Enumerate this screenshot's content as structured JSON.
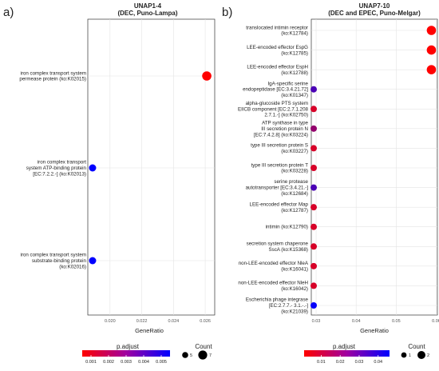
{
  "figure": {
    "legend_colors": [
      "#ff0000",
      "#0000ff"
    ]
  },
  "chart_data": [
    {
      "panel": "a)",
      "type": "scatter",
      "title": "UNAP1-4",
      "subtitle": "(DEC, Puno-Lampa)",
      "xlabel": "GeneRatio",
      "xlim": [
        0.0186,
        0.0266
      ],
      "xticks": [
        0.02,
        0.022,
        0.024,
        0.026
      ],
      "xtick_labels": [
        "0.020",
        "0.022",
        "0.024",
        "0.026"
      ],
      "categories": [
        [
          "iron complex transport system",
          "permease protein (ko:K02015)"
        ],
        [
          "iron complex transport",
          "system ATP-binding protein",
          "[EC:7.2.2.-] (ko:K02013)"
        ],
        [
          "iron complex transport system",
          "substrate-binding protein",
          "(ko:K02016)"
        ]
      ],
      "points": [
        {
          "x": 0.0261,
          "count": 7,
          "padj": 0.0005
        },
        {
          "x": 0.0189,
          "count": 5,
          "padj": 0.0055
        },
        {
          "x": 0.0189,
          "count": 5,
          "padj": 0.0055
        }
      ],
      "legend": {
        "color_title": "p.adjust",
        "color_ticks": [
          "0.001",
          "0.002",
          "0.003",
          "0.004",
          "0.005"
        ],
        "color_range": [
          0.0005,
          0.0055
        ],
        "size_title": "Count",
        "size_labels": [
          "5",
          "7"
        ]
      }
    },
    {
      "panel": "b)",
      "type": "scatter",
      "title": "UNAP7-10",
      "subtitle": "(DEC and EPEC, Puno-Melgar)",
      "xlabel": "GeneRatio",
      "xlim": [
        0.0288,
        0.0603
      ],
      "xticks": [
        0.03,
        0.04,
        0.05,
        0.06
      ],
      "xtick_labels": [
        "0.03",
        "0.04",
        "0.05",
        "0.06"
      ],
      "categories": [
        [
          "translocated intimin receptor",
          "(ko:K12784)"
        ],
        [
          "LEE-encoded effector EspG",
          "(ko:K12785)"
        ],
        [
          "LEE-encoded effector EspH",
          "(ko:K12788)"
        ],
        [
          "IgA-specific serine",
          "endopeptidase [EC:3.4.21.72]",
          "(ko:K01347)"
        ],
        [
          "alpha-glucoside PTS system",
          "EIICB component [EC:2.7.1.208",
          "2.7.1.-] (ko:K02750)"
        ],
        [
          "ATP synthase in type",
          "III secretion protein N",
          "[EC:7.4.2.8] (ko:K03224)"
        ],
        [
          "type III secretion protein S",
          "(ko:K03227)"
        ],
        [
          "type III secretion protein T",
          "(ko:K03228)"
        ],
        [
          "serine protease",
          "autotransporter [EC:3.4.21.-]",
          "(ko:K12684)"
        ],
        [
          "LEE-encoded effector Map",
          "(ko:K12787)"
        ],
        [
          "intimin (ko:K12790)"
        ],
        [
          "secretion system chaperone",
          "SscA (ko:K15368)"
        ],
        [
          "non-LEE-encoded effector NleA",
          "(ko:K16041)"
        ],
        [
          "non-LEE-encoded effector NleH",
          "(ko:K16042)"
        ],
        [
          "Escherichia phage integrase",
          "[EC:2.7.7.- 3.1.-.-]",
          "(ko:K21039)"
        ]
      ],
      "points": [
        {
          "x": 0.0588,
          "count": 2,
          "padj": 0.001
        },
        {
          "x": 0.0588,
          "count": 2,
          "padj": 0.001
        },
        {
          "x": 0.0588,
          "count": 2,
          "padj": 0.001
        },
        {
          "x": 0.0294,
          "count": 1,
          "padj": 0.033
        },
        {
          "x": 0.0294,
          "count": 1,
          "padj": 0.008
        },
        {
          "x": 0.0294,
          "count": 1,
          "padj": 0.02
        },
        {
          "x": 0.0294,
          "count": 1,
          "padj": 0.008
        },
        {
          "x": 0.0294,
          "count": 1,
          "padj": 0.008
        },
        {
          "x": 0.0294,
          "count": 1,
          "padj": 0.033
        },
        {
          "x": 0.0294,
          "count": 1,
          "padj": 0.008
        },
        {
          "x": 0.0294,
          "count": 1,
          "padj": 0.008
        },
        {
          "x": 0.0294,
          "count": 1,
          "padj": 0.008
        },
        {
          "x": 0.0294,
          "count": 1,
          "padj": 0.008
        },
        {
          "x": 0.0294,
          "count": 1,
          "padj": 0.008
        },
        {
          "x": 0.0294,
          "count": 1,
          "padj": 0.045
        }
      ],
      "legend": {
        "color_title": "p.adjust",
        "color_ticks": [
          "0.01",
          "0.02",
          "0.03",
          "0.04"
        ],
        "color_range": [
          0.001,
          0.046
        ],
        "size_title": "Count",
        "size_labels": [
          "1",
          "2"
        ]
      }
    }
  ]
}
